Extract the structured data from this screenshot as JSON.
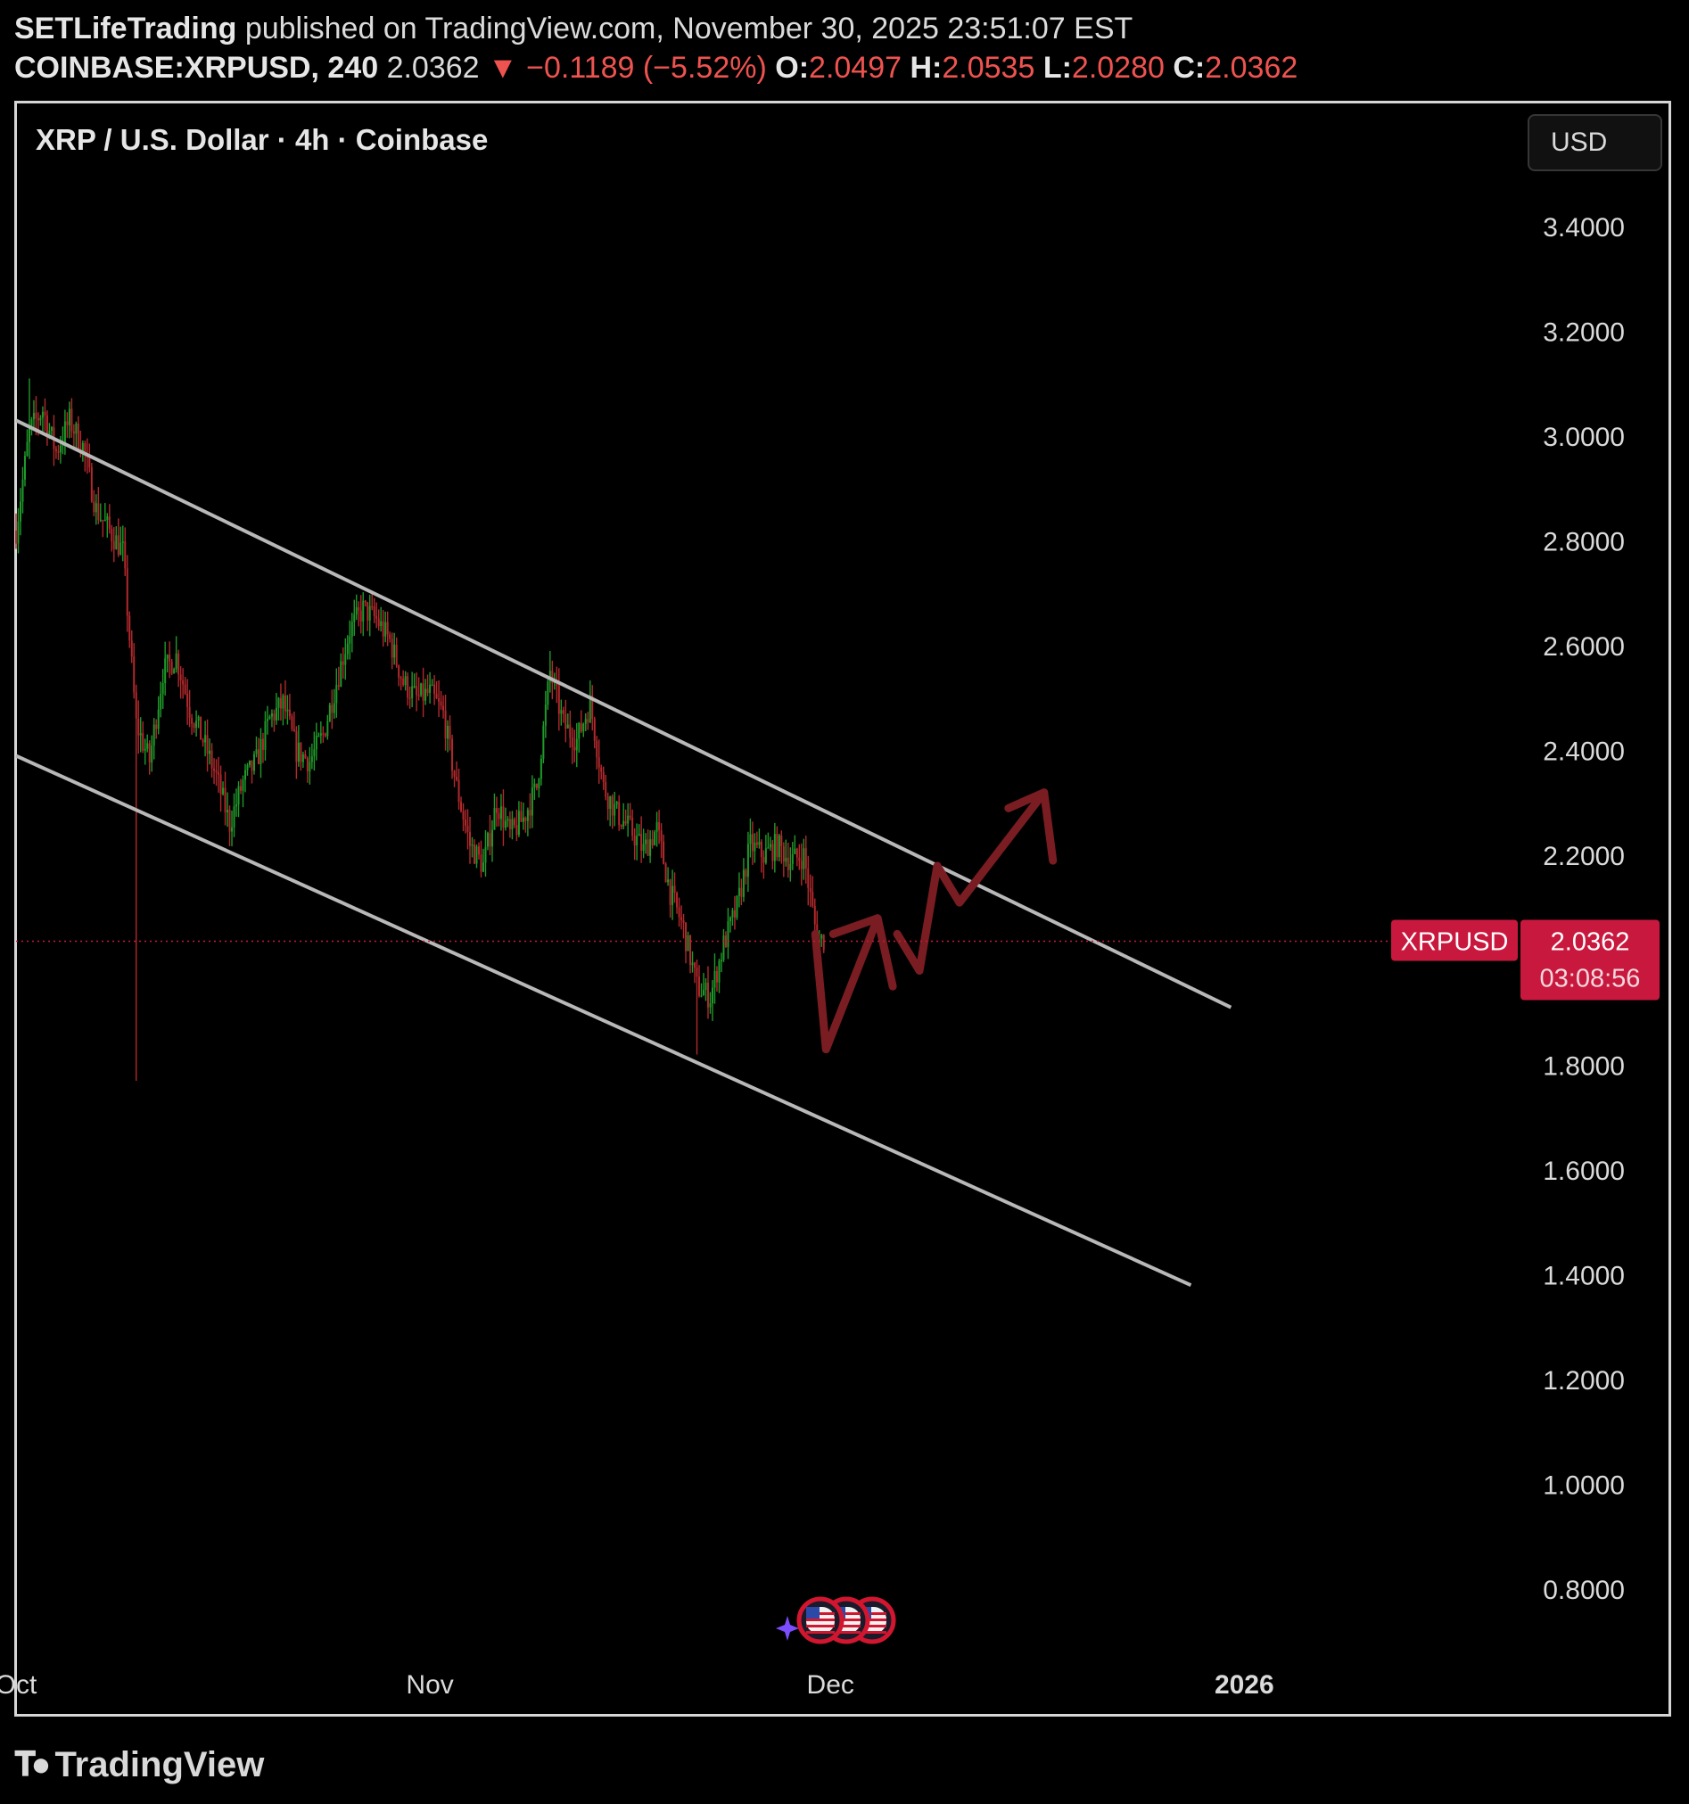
{
  "header": {
    "publisher": "SETLifeTrading",
    "published_text": "published on TradingView.com, November 30, 2025 23:51:07 EST",
    "symbol_interval": "COINBASE:XRPUSD, 240",
    "last_price": "2.0362",
    "change": "▼ −0.1189 (−5.52%)",
    "open_label": "O:",
    "open": "2.0497",
    "high_label": "H:",
    "high": "2.0535",
    "low_label": "L:",
    "low": "2.0280",
    "close_label": "C:",
    "close": "2.0362"
  },
  "chart_title": "XRP / U.S. Dollar · 4h · Coinbase",
  "currency": "USD",
  "price_tag": {
    "symbol": "XRPUSD",
    "price": "2.0362",
    "countdown": "03:08:56"
  },
  "footer": {
    "brand": "TradingView"
  },
  "colors": {
    "up": "#26a69a",
    "down": "#ef5350",
    "up_candle": "#1f9a2a",
    "down_candle": "#b2292c",
    "channel": "#b8b8b8",
    "arrow": "#7a1d22",
    "price_tag": "#c9183e"
  },
  "chart_data": {
    "type": "candlestick",
    "title": "XRP / U.S. Dollar · 4h · Coinbase",
    "ylim": [
      0.7,
      3.6
    ],
    "y_ticks": [
      "3.4000",
      "3.2000",
      "3.0000",
      "2.8000",
      "2.6000",
      "2.4000",
      "2.2000",
      "1.8000",
      "1.6000",
      "1.4000",
      "1.2000",
      "1.0000",
      "0.8000"
    ],
    "y_tick_values": [
      3.4,
      3.2,
      3.0,
      2.8,
      2.6,
      2.4,
      2.2,
      1.8,
      1.6,
      1.4,
      1.2,
      1.0,
      0.8
    ],
    "xlim": [
      "2025-10-01",
      "2026-01-12"
    ],
    "x_ticks": [
      {
        "label": "Oct",
        "date": "2025-10-01"
      },
      {
        "label": "Nov",
        "date": "2025-11-01"
      },
      {
        "label": "Dec",
        "date": "2025-12-01"
      },
      {
        "label": "2026",
        "date": "2026-01-01"
      }
    ],
    "last_price": 2.0362,
    "price_path": [
      [
        "2025-10-01",
        2.82
      ],
      [
        "2025-10-02",
        3.01
      ],
      [
        "2025-10-03",
        3.05
      ],
      [
        "2025-10-04",
        2.97
      ],
      [
        "2025-10-05",
        3.03
      ],
      [
        "2025-10-06",
        2.98
      ],
      [
        "2025-10-07",
        2.86
      ],
      [
        "2025-10-08",
        2.82
      ],
      [
        "2025-10-09",
        2.78
      ],
      [
        "2025-10-10",
        2.45
      ],
      [
        "2025-10-11",
        2.38
      ],
      [
        "2025-10-12",
        2.55
      ],
      [
        "2025-10-13",
        2.58
      ],
      [
        "2025-10-14",
        2.48
      ],
      [
        "2025-10-15",
        2.42
      ],
      [
        "2025-10-16",
        2.35
      ],
      [
        "2025-10-17",
        2.26
      ],
      [
        "2025-10-18",
        2.34
      ],
      [
        "2025-10-19",
        2.38
      ],
      [
        "2025-10-20",
        2.46
      ],
      [
        "2025-10-21",
        2.49
      ],
      [
        "2025-10-22",
        2.4
      ],
      [
        "2025-10-23",
        2.38
      ],
      [
        "2025-10-24",
        2.43
      ],
      [
        "2025-10-25",
        2.53
      ],
      [
        "2025-10-26",
        2.63
      ],
      [
        "2025-10-27",
        2.67
      ],
      [
        "2025-10-28",
        2.65
      ],
      [
        "2025-10-29",
        2.61
      ],
      [
        "2025-10-30",
        2.53
      ],
      [
        "2025-10-31",
        2.5
      ],
      [
        "2025-11-01",
        2.51
      ],
      [
        "2025-11-02",
        2.47
      ],
      [
        "2025-11-03",
        2.33
      ],
      [
        "2025-11-04",
        2.22
      ],
      [
        "2025-11-05",
        2.18
      ],
      [
        "2025-11-06",
        2.3
      ],
      [
        "2025-11-07",
        2.24
      ],
      [
        "2025-11-08",
        2.27
      ],
      [
        "2025-11-09",
        2.33
      ],
      [
        "2025-11-10",
        2.55
      ],
      [
        "2025-11-11",
        2.45
      ],
      [
        "2025-11-12",
        2.42
      ],
      [
        "2025-11-13",
        2.49
      ],
      [
        "2025-11-14",
        2.33
      ],
      [
        "2025-11-15",
        2.28
      ],
      [
        "2025-11-16",
        2.25
      ],
      [
        "2025-11-17",
        2.21
      ],
      [
        "2025-11-18",
        2.25
      ],
      [
        "2025-11-19",
        2.13
      ],
      [
        "2025-11-20",
        2.06
      ],
      [
        "2025-11-21",
        1.95
      ],
      [
        "2025-11-22",
        1.93
      ],
      [
        "2025-11-23",
        2.03
      ],
      [
        "2025-11-24",
        2.1
      ],
      [
        "2025-11-25",
        2.22
      ],
      [
        "2025-11-26",
        2.2
      ],
      [
        "2025-11-27",
        2.22
      ],
      [
        "2025-11-28",
        2.19
      ],
      [
        "2025-11-29",
        2.2
      ],
      [
        "2025-11-30",
        2.04
      ]
    ],
    "extremes": [
      [
        "2025-10-02",
        3.11,
        "high"
      ],
      [
        "2025-10-10",
        1.77,
        "low"
      ],
      [
        "2025-10-27",
        2.7,
        "high"
      ],
      [
        "2025-11-10",
        2.59,
        "high"
      ],
      [
        "2025-11-21",
        1.82,
        "low"
      ]
    ],
    "channel": {
      "upper": [
        [
          "2025-10-01",
          3.03
        ],
        [
          "2025-12-31",
          1.91
        ]
      ],
      "lower": [
        [
          "2025-10-01",
          2.39
        ],
        [
          "2025-12-28",
          1.38
        ]
      ]
    },
    "projection": [
      [
        "2025-11-30",
        1.85
      ],
      [
        "2025-11-30",
        2.05
      ],
      [
        "2025-12-04",
        2.0
      ],
      [
        "2025-12-06",
        2.06
      ],
      [
        "2025-12-09",
        2.18
      ],
      [
        "2025-12-11",
        2.11
      ],
      [
        "2025-12-17",
        2.32
      ],
      [
        "2025-12-18",
        2.22
      ]
    ],
    "grid": false
  }
}
